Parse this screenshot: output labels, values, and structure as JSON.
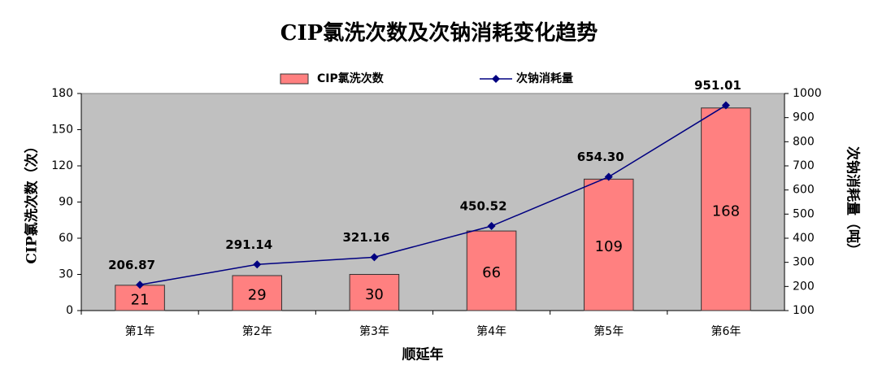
{
  "chart_data": {
    "type": "bar",
    "title": "CIP氯洗次数及次钠消耗变化趋势",
    "x_label": "顺延年",
    "y_label": "CIP氯洗次数（次）",
    "y2_label": "次钠消耗量（吨）",
    "categories": [
      "第1年",
      "第2年",
      "第3年",
      "第4年",
      "第5年",
      "第6年"
    ],
    "series": [
      {
        "name": "CIP氯洗次数",
        "color": "#ff8080",
        "values": [
          21,
          29,
          30,
          66,
          109,
          168
        ]
      },
      {
        "name": "次钠消耗量",
        "color": "#000080",
        "type": "line",
        "axis": "y2",
        "values": [
          206.87,
          291.14,
          321.16,
          450.52,
          654.3,
          951.01
        ],
        "value_labels": [
          "206.87",
          "291.14",
          "321.16",
          "450.52",
          "654.30",
          "951.01"
        ]
      }
    ],
    "ylim": [
      0,
      180
    ],
    "yticks": [
      0,
      30,
      60,
      90,
      120,
      150,
      180
    ],
    "y2lim": [
      100,
      1000
    ],
    "y2ticks": [
      100,
      200,
      300,
      400,
      500,
      600,
      700,
      800,
      900,
      1000
    ],
    "legend": "top",
    "plot_background": "#c0c0c0"
  }
}
